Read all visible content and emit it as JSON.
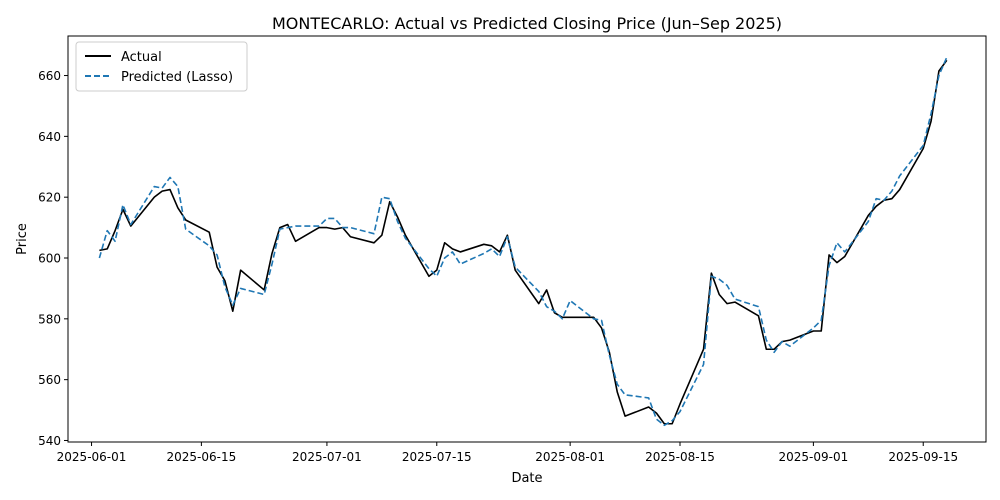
{
  "chart_data": {
    "type": "line",
    "title": "MONTECARLO: Actual vs Predicted Closing Price (Jun–Sep 2025)",
    "xlabel": "Date",
    "ylabel": "Price",
    "x_ticks": [
      "2025-06-01",
      "2025-06-15",
      "2025-07-01",
      "2025-07-15",
      "2025-08-01",
      "2025-08-15",
      "2025-09-01",
      "2025-09-15"
    ],
    "y_ticks": [
      540,
      560,
      580,
      600,
      620,
      640,
      660
    ],
    "xlim": [
      "2025-05-29",
      "2025-09-23"
    ],
    "ylim": [
      539.5,
      673
    ],
    "grid": false,
    "legend_position": "top-left",
    "series": [
      {
        "name": "Actual",
        "color": "#000000",
        "style": "solid",
        "points": [
          [
            "2025-06-02",
            602.5
          ],
          [
            "2025-06-03",
            603
          ],
          [
            "2025-06-04",
            609
          ],
          [
            "2025-06-05",
            616
          ],
          [
            "2025-06-06",
            610.5
          ],
          [
            "2025-06-09",
            620
          ],
          [
            "2025-06-10",
            622
          ],
          [
            "2025-06-11",
            622.5
          ],
          [
            "2025-06-12",
            616.5
          ],
          [
            "2025-06-13",
            612.5
          ],
          [
            "2025-06-16",
            608.5
          ],
          [
            "2025-06-17",
            597
          ],
          [
            "2025-06-18",
            592.5
          ],
          [
            "2025-06-19",
            582.5
          ],
          [
            "2025-06-20",
            596
          ],
          [
            "2025-06-23",
            589.5
          ],
          [
            "2025-06-24",
            601.5
          ],
          [
            "2025-06-25",
            610
          ],
          [
            "2025-06-26",
            611
          ],
          [
            "2025-06-27",
            605.5
          ],
          [
            "2025-06-30",
            610
          ],
          [
            "2025-07-01",
            610
          ],
          [
            "2025-07-02",
            609.5
          ],
          [
            "2025-07-03",
            610
          ],
          [
            "2025-07-04",
            607
          ],
          [
            "2025-07-07",
            605
          ],
          [
            "2025-07-08",
            607.5
          ],
          [
            "2025-07-09",
            618.5
          ],
          [
            "2025-07-10",
            613.5
          ],
          [
            "2025-07-11",
            607.5
          ],
          [
            "2025-07-14",
            594
          ],
          [
            "2025-07-15",
            596
          ],
          [
            "2025-07-16",
            605
          ],
          [
            "2025-07-17",
            603
          ],
          [
            "2025-07-18",
            602
          ],
          [
            "2025-07-21",
            604.5
          ],
          [
            "2025-07-22",
            604
          ],
          [
            "2025-07-23",
            602
          ],
          [
            "2025-07-24",
            607.5
          ],
          [
            "2025-07-25",
            596
          ],
          [
            "2025-07-28",
            585
          ],
          [
            "2025-07-29",
            589.5
          ],
          [
            "2025-07-30",
            582
          ],
          [
            "2025-07-31",
            580.5
          ],
          [
            "2025-08-01",
            580.5
          ],
          [
            "2025-08-04",
            580.5
          ],
          [
            "2025-08-05",
            577
          ],
          [
            "2025-08-06",
            569
          ],
          [
            "2025-08-07",
            556
          ],
          [
            "2025-08-08",
            548
          ],
          [
            "2025-08-11",
            551
          ],
          [
            "2025-08-12",
            549
          ],
          [
            "2025-08-13",
            545.5
          ],
          [
            "2025-08-14",
            545.5
          ],
          [
            "2025-08-15",
            552
          ],
          [
            "2025-08-18",
            570
          ],
          [
            "2025-08-19",
            595
          ],
          [
            "2025-08-20",
            588
          ],
          [
            "2025-08-21",
            585
          ],
          [
            "2025-08-22",
            585.5
          ],
          [
            "2025-08-25",
            581
          ],
          [
            "2025-08-26",
            570
          ],
          [
            "2025-08-27",
            570
          ],
          [
            "2025-08-28",
            572.5
          ],
          [
            "2025-08-29",
            573
          ],
          [
            "2025-09-01",
            576
          ],
          [
            "2025-09-02",
            576
          ],
          [
            "2025-09-03",
            601
          ],
          [
            "2025-09-04",
            598.5
          ],
          [
            "2025-09-05",
            600.5
          ],
          [
            "2025-09-08",
            614
          ],
          [
            "2025-09-09",
            617
          ],
          [
            "2025-09-10",
            619
          ],
          [
            "2025-09-11",
            619.5
          ],
          [
            "2025-09-12",
            622.5
          ],
          [
            "2025-09-15",
            636
          ],
          [
            "2025-09-16",
            645
          ],
          [
            "2025-09-17",
            661.5
          ],
          [
            "2025-09-18",
            665
          ]
        ]
      },
      {
        "name": "Predicted (Lasso)",
        "color": "#1f77b4",
        "style": "dashed",
        "points": [
          [
            "2025-06-02",
            600
          ],
          [
            "2025-06-03",
            609
          ],
          [
            "2025-06-04",
            605.5
          ],
          [
            "2025-06-05",
            617.5
          ],
          [
            "2025-06-06",
            611
          ],
          [
            "2025-06-09",
            623.5
          ],
          [
            "2025-06-10",
            623
          ],
          [
            "2025-06-11",
            626.5
          ],
          [
            "2025-06-12",
            623.5
          ],
          [
            "2025-06-13",
            609.5
          ],
          [
            "2025-06-16",
            604
          ],
          [
            "2025-06-17",
            601
          ],
          [
            "2025-06-18",
            590.5
          ],
          [
            "2025-06-19",
            584.5
          ],
          [
            "2025-06-20",
            590
          ],
          [
            "2025-06-23",
            588
          ],
          [
            "2025-06-24",
            598
          ],
          [
            "2025-06-25",
            609.5
          ],
          [
            "2025-06-26",
            610
          ],
          [
            "2025-06-27",
            610.5
          ],
          [
            "2025-06-30",
            610.5
          ],
          [
            "2025-07-01",
            613
          ],
          [
            "2025-07-02",
            613
          ],
          [
            "2025-07-03",
            610
          ],
          [
            "2025-07-04",
            610
          ],
          [
            "2025-07-07",
            608
          ],
          [
            "2025-07-08",
            620
          ],
          [
            "2025-07-09",
            619.5
          ],
          [
            "2025-07-10",
            612
          ],
          [
            "2025-07-11",
            606.5
          ],
          [
            "2025-07-14",
            596.5
          ],
          [
            "2025-07-15",
            594
          ],
          [
            "2025-07-16",
            600
          ],
          [
            "2025-07-17",
            602
          ],
          [
            "2025-07-18",
            598
          ],
          [
            "2025-07-21",
            601.5
          ],
          [
            "2025-07-22",
            603
          ],
          [
            "2025-07-23",
            600.5
          ],
          [
            "2025-07-24",
            607
          ],
          [
            "2025-07-25",
            597
          ],
          [
            "2025-07-28",
            589
          ],
          [
            "2025-07-29",
            584
          ],
          [
            "2025-07-30",
            582.5
          ],
          [
            "2025-07-31",
            580
          ],
          [
            "2025-08-01",
            586
          ],
          [
            "2025-08-04",
            580
          ],
          [
            "2025-08-05",
            579.5
          ],
          [
            "2025-08-06",
            568
          ],
          [
            "2025-08-07",
            558.5
          ],
          [
            "2025-08-08",
            555
          ],
          [
            "2025-08-11",
            554
          ],
          [
            "2025-08-12",
            547
          ],
          [
            "2025-08-13",
            545
          ],
          [
            "2025-08-14",
            546.5
          ],
          [
            "2025-08-15",
            549.5
          ],
          [
            "2025-08-18",
            565
          ],
          [
            "2025-08-19",
            594
          ],
          [
            "2025-08-20",
            593
          ],
          [
            "2025-08-21",
            591
          ],
          [
            "2025-08-22",
            586.5
          ],
          [
            "2025-08-25",
            584
          ],
          [
            "2025-08-26",
            573
          ],
          [
            "2025-08-27",
            569
          ],
          [
            "2025-08-28",
            572.5
          ],
          [
            "2025-08-29",
            571
          ],
          [
            "2025-09-01",
            577
          ],
          [
            "2025-09-02",
            579.5
          ],
          [
            "2025-09-03",
            597.5
          ],
          [
            "2025-09-04",
            605
          ],
          [
            "2025-09-05",
            602
          ],
          [
            "2025-09-08",
            612
          ],
          [
            "2025-09-09",
            619.5
          ],
          [
            "2025-09-10",
            619
          ],
          [
            "2025-09-11",
            622
          ],
          [
            "2025-09-12",
            627
          ],
          [
            "2025-09-15",
            637
          ],
          [
            "2025-09-16",
            647.5
          ],
          [
            "2025-09-17",
            660
          ],
          [
            "2025-09-18",
            666
          ]
        ]
      }
    ]
  }
}
